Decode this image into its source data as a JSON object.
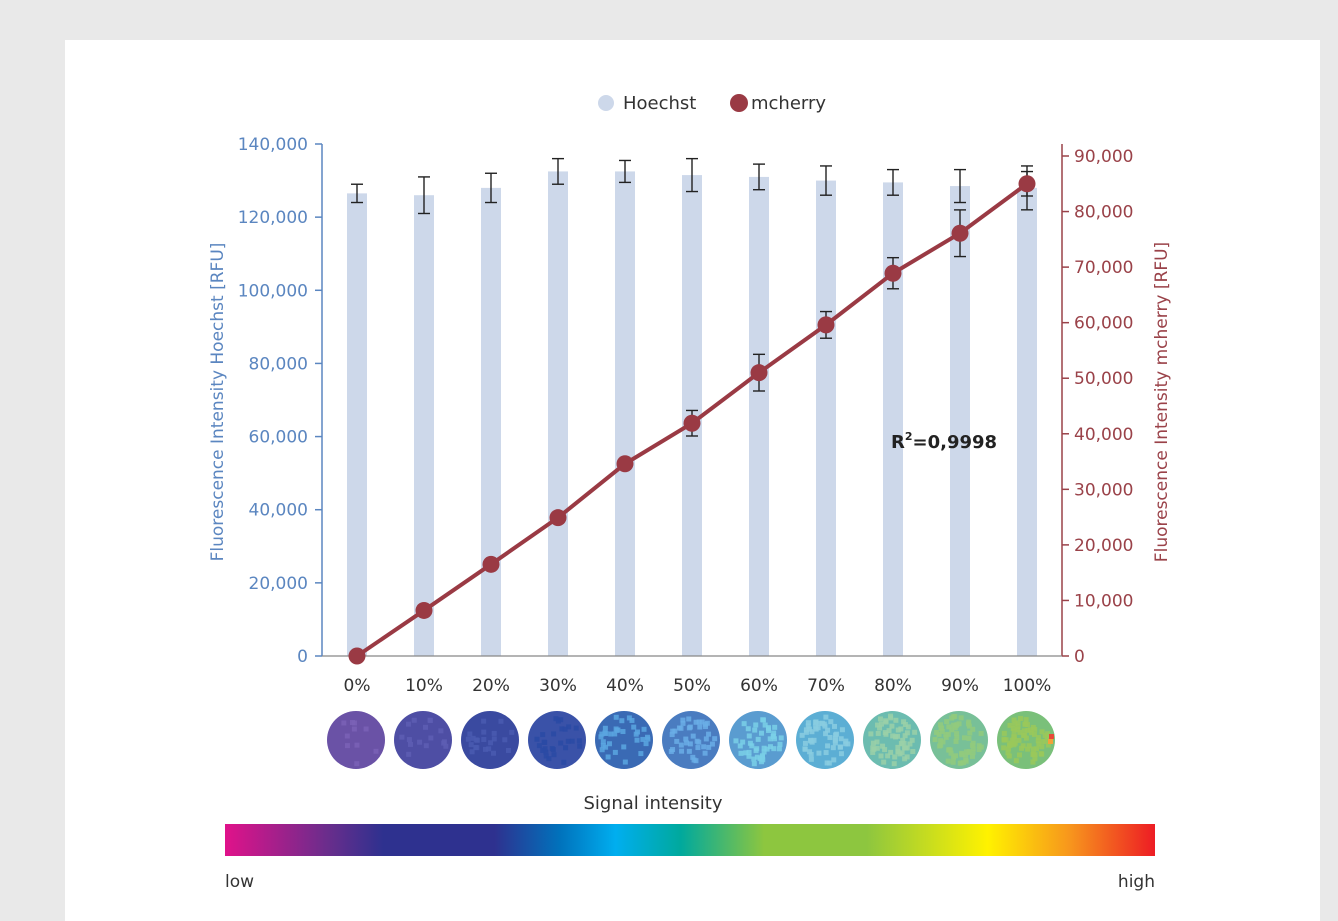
{
  "chart_data": {
    "type": "bar",
    "categories": [
      "0%",
      "10%",
      "20%",
      "30%",
      "40%",
      "50%",
      "60%",
      "70%",
      "80%",
      "90%",
      "100%"
    ],
    "series": [
      {
        "name": "Hoechst",
        "kind": "bar",
        "axis": "left",
        "color": "#cdd8ea",
        "values": [
          126500,
          126000,
          128000,
          132500,
          132500,
          131500,
          131000,
          130000,
          129500,
          128500,
          128000
        ],
        "error": [
          2500,
          5000,
          4000,
          3500,
          3000,
          4500,
          3500,
          4000,
          3500,
          4500,
          6000
        ]
      },
      {
        "name": "mcherry",
        "kind": "line",
        "axis": "right",
        "color": "#9a3a44",
        "values": [
          0,
          8200,
          16500,
          24900,
          34600,
          41900,
          51000,
          59600,
          68900,
          76100,
          85000
        ],
        "error": [
          0,
          0,
          0,
          0,
          0,
          2300,
          3300,
          2400,
          2800,
          4200,
          2200
        ]
      }
    ],
    "ylabel": "Fluorescence Intensity Hoechst [RFU]",
    "ylim": [
      0,
      140000
    ],
    "yticks": [
      "0",
      "20,000",
      "40,000",
      "60,000",
      "80,000",
      "100,000",
      "120,000",
      "140,000"
    ],
    "y2label": "Fluorescence Intensity mcherry [RFU]",
    "y2lim": [
      0,
      90000
    ],
    "y2ticks": [
      "0",
      "10,000",
      "20,000",
      "30,000",
      "40,000",
      "50,000",
      "60,000",
      "70,000",
      "80,000",
      "90,000"
    ],
    "annotation": {
      "prefix": "R",
      "sup": "2",
      "text": "=0,9998"
    },
    "legend_position": "top-center",
    "grid": false
  },
  "wells": {
    "colors": [
      "#6a52a6",
      "#4e4ea4",
      "#3a4aa0",
      "#3a52a8",
      "#3a6ab4",
      "#4a7cc0",
      "#5a9cd0",
      "#5caed4",
      "#6cbcb0",
      "#78c098",
      "#7ac07a"
    ],
    "accents": [
      "#7a62b6",
      "#5e5eb4",
      "#4a5ab0",
      "#2a4aa4",
      "#5aa6e0",
      "#6aaee6",
      "#7ad0e8",
      "#8acce0",
      "#9ad0a8",
      "#92ca7c",
      "#9ac85a"
    ]
  },
  "signal": {
    "title": "Signal intensity",
    "low": "low",
    "high": "high"
  }
}
